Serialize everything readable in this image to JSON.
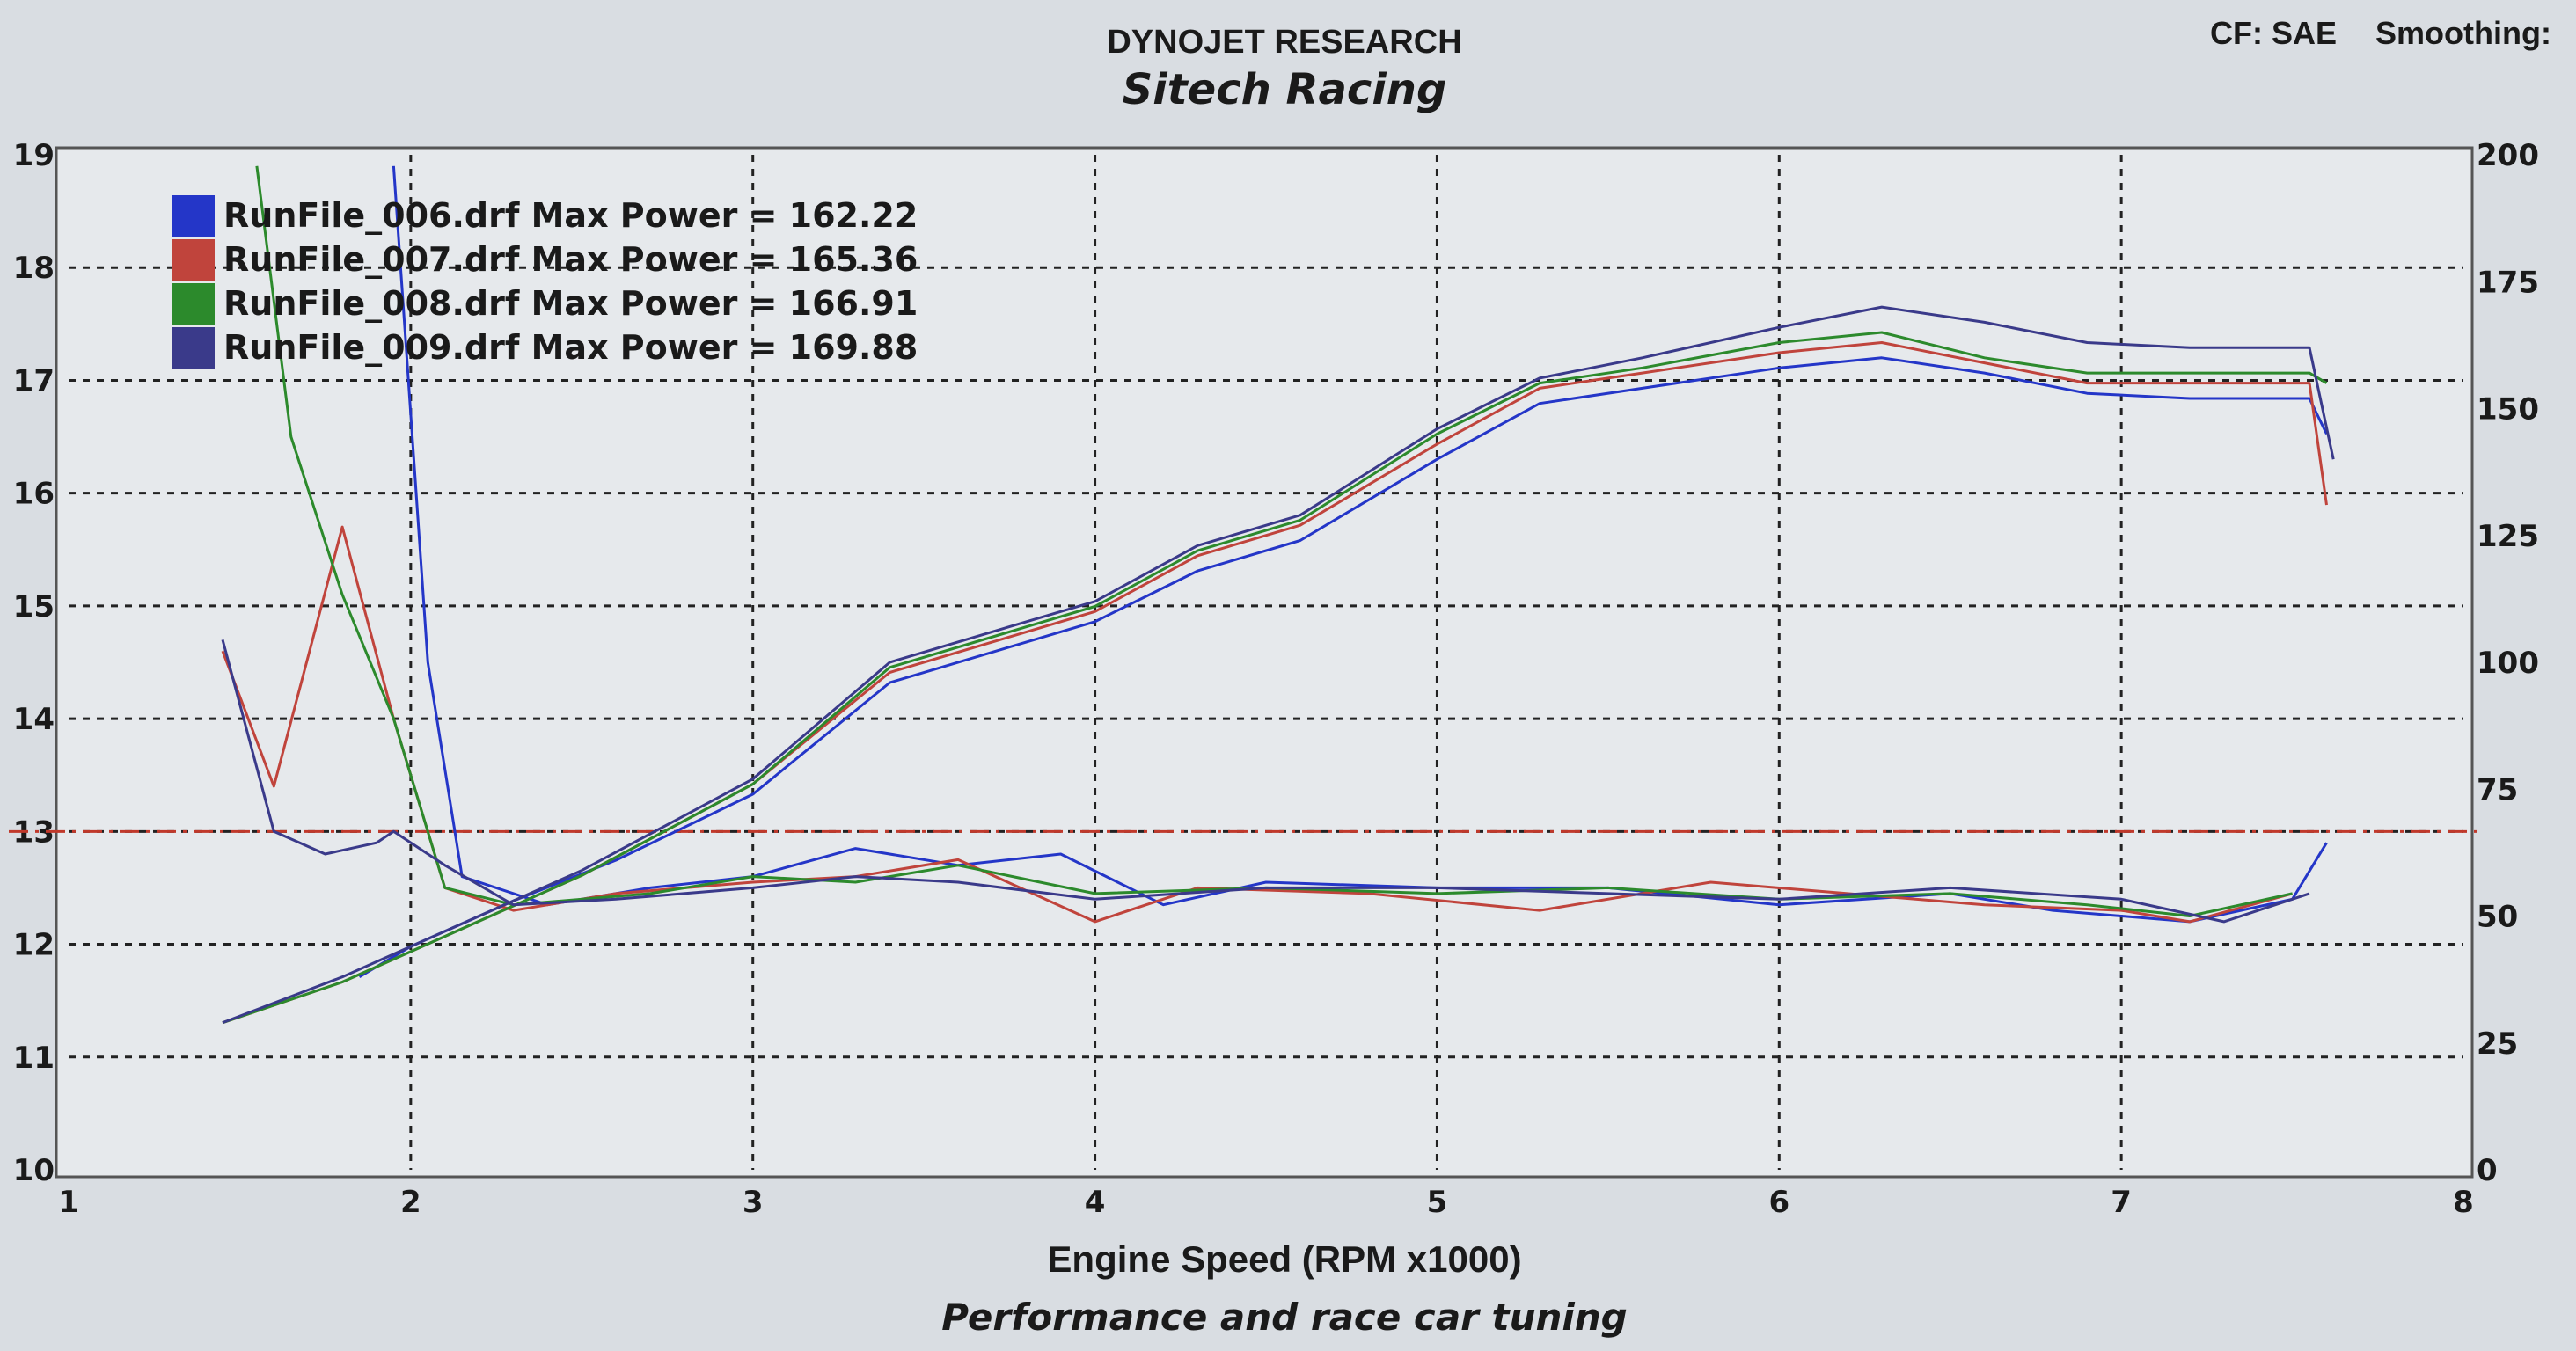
{
  "header": {
    "company": "DYNOJET RESEARCH",
    "shop": "Sitech Racing",
    "cf": "CF: SAE",
    "smoothing": "Smoothing:",
    "footer": "Performance and race car tuning"
  },
  "chart_data": {
    "type": "line",
    "xlabel": "Engine Speed (RPM x1000)",
    "xlim": [
      1,
      8
    ],
    "x_ticks": [
      "1",
      "2",
      "3",
      "4",
      "5",
      "6",
      "7",
      "8"
    ],
    "y_left_lim": [
      10,
      19
    ],
    "y_left_ticks": [
      "10",
      "11",
      "12",
      "13",
      "14",
      "15",
      "16",
      "17",
      "18",
      "19"
    ],
    "y_right_lim": [
      0,
      200
    ],
    "y_right_ticks": [
      "0",
      "25",
      "50",
      "75",
      "100",
      "125",
      "150",
      "175",
      "200"
    ],
    "grid": true,
    "legend_position": "top-left",
    "reference_afr": 13.0,
    "reference_color": "#c0392b",
    "series": [
      {
        "name": "RunFile_006.drf Max Power = 162.22",
        "color": "#2436c8",
        "power": [
          [
            1.85,
            38
          ],
          [
            2,
            44
          ],
          [
            2.3,
            53
          ],
          [
            2.6,
            61
          ],
          [
            3,
            74
          ],
          [
            3.4,
            96
          ],
          [
            3.8,
            104
          ],
          [
            4,
            108
          ],
          [
            4.3,
            118
          ],
          [
            4.6,
            124
          ],
          [
            5,
            140
          ],
          [
            5.3,
            151
          ],
          [
            5.6,
            154
          ],
          [
            6,
            158
          ],
          [
            6.3,
            160
          ],
          [
            6.6,
            157
          ],
          [
            6.9,
            153
          ],
          [
            7.2,
            152
          ],
          [
            7.55,
            152
          ],
          [
            7.6,
            145
          ]
        ],
        "afr": [
          [
            1.95,
            18.9
          ],
          [
            2.05,
            14.5
          ],
          [
            2.15,
            12.6
          ],
          [
            2.4,
            12.35
          ],
          [
            2.7,
            12.5
          ],
          [
            3,
            12.6
          ],
          [
            3.3,
            12.85
          ],
          [
            3.6,
            12.7
          ],
          [
            3.9,
            12.8
          ],
          [
            4.2,
            12.35
          ],
          [
            4.5,
            12.55
          ],
          [
            5,
            12.5
          ],
          [
            5.5,
            12.5
          ],
          [
            6,
            12.35
          ],
          [
            6.5,
            12.45
          ],
          [
            6.8,
            12.3
          ],
          [
            7.2,
            12.2
          ],
          [
            7.5,
            12.4
          ],
          [
            7.6,
            12.9
          ]
        ]
      },
      {
        "name": "RunFile_007.drf Max Power = 165.36",
        "color": "#c0443c",
        "power": [
          [
            1.45,
            29
          ],
          [
            1.8,
            37
          ],
          [
            2.1,
            46
          ],
          [
            2.5,
            58
          ],
          [
            3,
            76
          ],
          [
            3.4,
            98
          ],
          [
            3.8,
            106
          ],
          [
            4,
            110
          ],
          [
            4.3,
            121
          ],
          [
            4.6,
            127
          ],
          [
            5,
            143
          ],
          [
            5.3,
            154
          ],
          [
            5.6,
            157
          ],
          [
            6,
            161
          ],
          [
            6.3,
            163
          ],
          [
            6.6,
            159
          ],
          [
            6.9,
            155
          ],
          [
            7.2,
            155
          ],
          [
            7.55,
            155
          ],
          [
            7.6,
            131
          ]
        ],
        "afr": [
          [
            1.45,
            14.6
          ],
          [
            1.6,
            13.4
          ],
          [
            1.8,
            15.7
          ],
          [
            1.95,
            14.0
          ],
          [
            2.1,
            12.5
          ],
          [
            2.3,
            12.3
          ],
          [
            2.6,
            12.45
          ],
          [
            3,
            12.55
          ],
          [
            3.3,
            12.6
          ],
          [
            3.6,
            12.75
          ],
          [
            4,
            12.2
          ],
          [
            4.3,
            12.5
          ],
          [
            4.8,
            12.45
          ],
          [
            5.3,
            12.3
          ],
          [
            5.8,
            12.55
          ],
          [
            6.2,
            12.45
          ],
          [
            6.6,
            12.35
          ],
          [
            7,
            12.3
          ],
          [
            7.2,
            12.2
          ],
          [
            7.5,
            12.45
          ]
        ]
      },
      {
        "name": "RunFile_008.drf Max Power = 166.91",
        "color": "#2c8a2c",
        "power": [
          [
            1.45,
            29
          ],
          [
            1.8,
            37
          ],
          [
            2.1,
            46
          ],
          [
            2.5,
            58
          ],
          [
            3,
            76
          ],
          [
            3.4,
            99
          ],
          [
            3.8,
            107
          ],
          [
            4,
            111
          ],
          [
            4.3,
            122
          ],
          [
            4.6,
            128
          ],
          [
            5,
            145
          ],
          [
            5.3,
            155
          ],
          [
            5.6,
            158
          ],
          [
            6,
            163
          ],
          [
            6.3,
            165
          ],
          [
            6.6,
            160
          ],
          [
            6.9,
            157
          ],
          [
            7.2,
            157
          ],
          [
            7.55,
            157
          ],
          [
            7.6,
            155
          ]
        ],
        "afr": [
          [
            1.55,
            18.9
          ],
          [
            1.65,
            16.5
          ],
          [
            1.8,
            15.1
          ],
          [
            1.95,
            14.0
          ],
          [
            2.1,
            12.5
          ],
          [
            2.3,
            12.35
          ],
          [
            2.7,
            12.45
          ],
          [
            3,
            12.6
          ],
          [
            3.3,
            12.55
          ],
          [
            3.6,
            12.7
          ],
          [
            4,
            12.45
          ],
          [
            4.5,
            12.5
          ],
          [
            5,
            12.45
          ],
          [
            5.5,
            12.5
          ],
          [
            6,
            12.4
          ],
          [
            6.5,
            12.45
          ],
          [
            6.9,
            12.35
          ],
          [
            7.2,
            12.25
          ],
          [
            7.5,
            12.45
          ]
        ]
      },
      {
        "name": "RunFile_009.drf Max Power = 169.88",
        "color": "#3a3a8a",
        "power": [
          [
            1.45,
            29
          ],
          [
            1.8,
            38
          ],
          [
            2.1,
            47
          ],
          [
            2.5,
            59
          ],
          [
            3,
            77
          ],
          [
            3.4,
            100
          ],
          [
            3.8,
            108
          ],
          [
            4,
            112
          ],
          [
            4.3,
            123
          ],
          [
            4.6,
            129
          ],
          [
            5,
            146
          ],
          [
            5.3,
            156
          ],
          [
            5.6,
            160
          ],
          [
            6,
            166
          ],
          [
            6.3,
            170
          ],
          [
            6.6,
            167
          ],
          [
            6.9,
            163
          ],
          [
            7.2,
            162
          ],
          [
            7.55,
            162
          ],
          [
            7.62,
            140
          ]
        ],
        "afr": [
          [
            1.45,
            14.7
          ],
          [
            1.6,
            13.0
          ],
          [
            1.75,
            12.8
          ],
          [
            1.9,
            12.9
          ],
          [
            1.95,
            13.0
          ],
          [
            2.1,
            12.7
          ],
          [
            2.3,
            12.35
          ],
          [
            2.6,
            12.4
          ],
          [
            3,
            12.5
          ],
          [
            3.3,
            12.6
          ],
          [
            3.6,
            12.55
          ],
          [
            4,
            12.4
          ],
          [
            4.5,
            12.5
          ],
          [
            5,
            12.5
          ],
          [
            5.5,
            12.45
          ],
          [
            6,
            12.4
          ],
          [
            6.5,
            12.5
          ],
          [
            7,
            12.4
          ],
          [
            7.3,
            12.2
          ],
          [
            7.55,
            12.45
          ]
        ]
      }
    ]
  }
}
